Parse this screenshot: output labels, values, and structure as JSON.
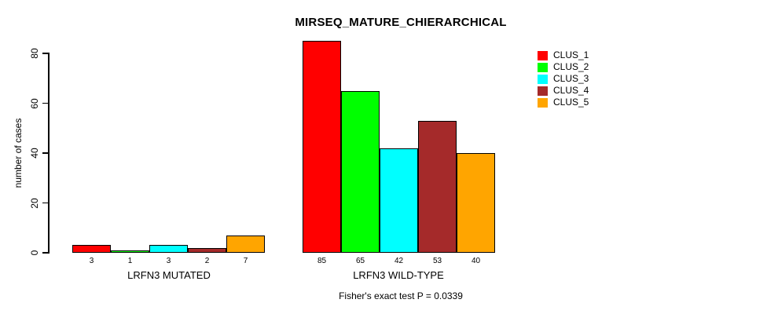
{
  "chart_data": {
    "type": "bar",
    "title": "MIRSEQ_MATURE_CHIERARCHICAL",
    "xlabel": "",
    "ylabel": "number of cases",
    "ylim": [
      0,
      85
    ],
    "yticks": [
      0,
      20,
      40,
      60,
      80
    ],
    "grid": false,
    "legend_position": "top-right",
    "categories": [
      "LRFN3 MUTATED",
      "LRFN3 WILD-TYPE"
    ],
    "groups": [
      {
        "label": "LRFN3 MUTATED",
        "values": [
          3,
          1,
          3,
          2,
          7
        ]
      },
      {
        "label": "LRFN3 WILD-TYPE",
        "values": [
          85,
          65,
          42,
          53,
          40
        ]
      }
    ],
    "series": [
      {
        "name": "CLUS_1",
        "color": "#FF0000",
        "values": [
          3,
          85
        ]
      },
      {
        "name": "CLUS_2",
        "color": "#00FF00",
        "values": [
          1,
          65
        ]
      },
      {
        "name": "CLUS_3",
        "color": "#00FFFF",
        "values": [
          3,
          42
        ]
      },
      {
        "name": "CLUS_4",
        "color": "#A52A2A",
        "values": [
          2,
          53
        ]
      },
      {
        "name": "CLUS_5",
        "color": "#FFA500",
        "values": [
          7,
          40
        ]
      }
    ],
    "bar_border_color": "#000000",
    "annotation": "Fisher's exact test P = 0.0339"
  }
}
